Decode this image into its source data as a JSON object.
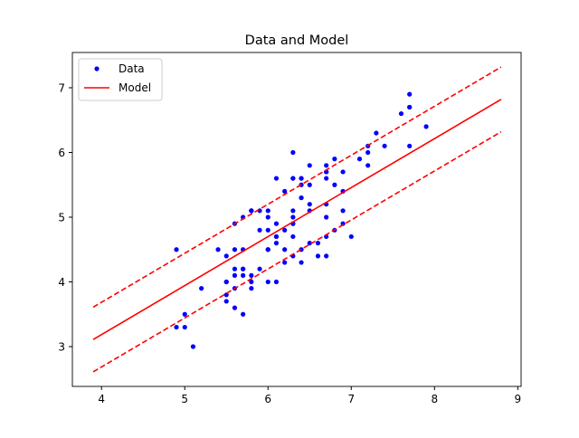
{
  "chart_data": {
    "type": "scatter",
    "title": "Data and Model",
    "xlabel": "",
    "ylabel": "",
    "xlim": [
      3.65,
      9.04
    ],
    "ylim": [
      2.385,
      7.545
    ],
    "xticks": [
      4,
      5,
      6,
      7,
      8,
      9
    ],
    "yticks": [
      3,
      4,
      5,
      6,
      7
    ],
    "grid": false,
    "legend": {
      "placement": "top-left",
      "entries": [
        "Data",
        "Model"
      ]
    },
    "colors": {
      "data": "#0000ff",
      "model": "#ff0000"
    },
    "series": [
      {
        "name": "Data",
        "kind": "points",
        "x": [
          7.0,
          6.4,
          6.9,
          5.5,
          6.5,
          5.7,
          6.3,
          4.9,
          6.6,
          5.2,
          5.0,
          5.9,
          6.0,
          6.1,
          5.6,
          6.7,
          5.6,
          5.8,
          6.2,
          5.6,
          5.9,
          6.1,
          6.3,
          6.1,
          6.4,
          6.6,
          6.8,
          6.7,
          6.0,
          5.7,
          5.5,
          5.5,
          5.8,
          6.0,
          5.4,
          6.0,
          6.7,
          6.3,
          5.6,
          5.5,
          5.5,
          6.1,
          5.8,
          5.0,
          5.6,
          5.7,
          5.7,
          6.2,
          5.1,
          5.7,
          6.3,
          5.8,
          7.1,
          6.3,
          6.5,
          7.6,
          4.9,
          7.3,
          6.7,
          7.2,
          6.5,
          6.4,
          6.8,
          5.7,
          5.8,
          6.4,
          6.5,
          7.7,
          7.7,
          6.0,
          6.9,
          5.6,
          7.7,
          6.3,
          6.7,
          7.2,
          6.2,
          6.1,
          6.4,
          7.2,
          7.4,
          7.9,
          6.4,
          6.3,
          6.1,
          7.7,
          6.3,
          6.4,
          6.0,
          6.9,
          6.7,
          6.9,
          5.8,
          6.8,
          6.7,
          6.7,
          6.3,
          6.5,
          6.2,
          5.9
        ],
        "y": [
          4.7,
          4.5,
          4.9,
          4.0,
          4.6,
          4.5,
          4.7,
          3.3,
          4.6,
          3.9,
          3.5,
          4.2,
          4.0,
          4.7,
          3.6,
          4.4,
          4.5,
          4.1,
          4.5,
          3.9,
          4.8,
          4.0,
          4.9,
          4.7,
          4.3,
          4.4,
          4.8,
          5.0,
          4.5,
          3.5,
          3.8,
          3.7,
          3.9,
          5.1,
          4.5,
          4.5,
          4.7,
          4.4,
          4.1,
          4.0,
          4.4,
          4.6,
          4.0,
          3.3,
          4.2,
          4.2,
          4.2,
          4.3,
          3.0,
          4.1,
          6.0,
          5.1,
          5.9,
          5.6,
          5.8,
          6.6,
          4.5,
          6.3,
          5.8,
          6.1,
          5.1,
          5.3,
          5.5,
          5.0,
          5.1,
          5.3,
          5.5,
          6.7,
          6.9,
          5.0,
          5.7,
          4.9,
          6.7,
          4.9,
          5.7,
          6.0,
          4.8,
          4.9,
          5.6,
          5.8,
          6.1,
          6.4,
          5.6,
          5.1,
          5.6,
          6.1,
          5.6,
          5.5,
          4.8,
          5.4,
          5.6,
          5.1,
          5.1,
          5.9,
          5.7,
          5.2,
          5.0,
          5.2,
          5.4,
          5.1
        ]
      },
      {
        "name": "Model",
        "kind": "line",
        "x": [
          3.9,
          8.8
        ],
        "y": [
          3.11,
          6.82
        ]
      },
      {
        "name": "Model upper",
        "kind": "dashed",
        "x": [
          3.9,
          8.8
        ],
        "y": [
          3.61,
          7.32
        ]
      },
      {
        "name": "Model lower",
        "kind": "dashed",
        "x": [
          3.9,
          8.8
        ],
        "y": [
          2.61,
          6.32
        ]
      }
    ]
  }
}
